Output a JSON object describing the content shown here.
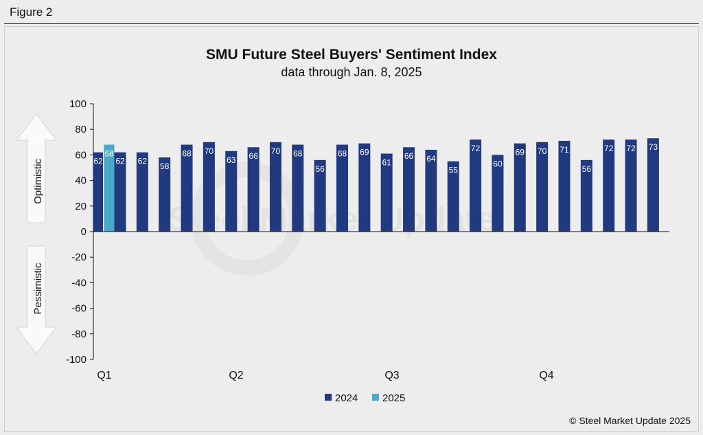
{
  "figure_label": "Figure 2",
  "credit": "© Steel Market Update 2025",
  "chart_data": {
    "type": "bar",
    "title": "SMU Future Steel Buyers' Sentiment Index",
    "subtitle": "data through Jan. 8, 2025",
    "ylim": [
      -100,
      100
    ],
    "yticks": [
      100,
      80,
      60,
      40,
      20,
      0,
      -20,
      -40,
      -60,
      -80,
      -100
    ],
    "arrow_labels": {
      "up": "Optimistic",
      "down": "Pessimistic"
    },
    "quarter_labels": [
      "Q1",
      "Q2",
      "Q3",
      "Q4"
    ],
    "series": [
      {
        "name": "2024",
        "color": "#213a7f",
        "values": [
          62,
          62,
          62,
          58,
          68,
          70,
          63,
          66,
          70,
          68,
          56,
          68,
          69,
          61,
          66,
          64,
          55,
          72,
          60,
          69,
          70,
          71,
          56,
          72,
          72,
          73
        ]
      },
      {
        "name": "2025",
        "color": "#4aa8c8",
        "values": [
          68
        ]
      }
    ],
    "legend_position": "bottom-center",
    "grid": false,
    "watermark": "Steel Market Update"
  }
}
